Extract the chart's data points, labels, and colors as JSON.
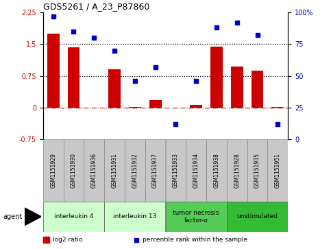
{
  "title": "GDS5261 / A_23_P87860",
  "samples": [
    "GSM1151929",
    "GSM1151930",
    "GSM1151936",
    "GSM1151931",
    "GSM1151932",
    "GSM1151937",
    "GSM1151933",
    "GSM1151934",
    "GSM1151938",
    "GSM1151928",
    "GSM1151935",
    "GSM1151951"
  ],
  "log2_ratio": [
    1.75,
    1.42,
    0.0,
    0.9,
    0.02,
    0.18,
    0.0,
    0.07,
    1.45,
    0.97,
    0.88,
    0.02
  ],
  "percentile": [
    97,
    85,
    80,
    70,
    46,
    57,
    12,
    46,
    88,
    92,
    82,
    12
  ],
  "bar_color": "#CC0000",
  "dot_color": "#0000CC",
  "ylim_left": [
    -0.75,
    2.25
  ],
  "ylim_right": [
    0,
    100
  ],
  "yticks_left": [
    -0.75,
    0,
    0.75,
    1.5,
    2.25
  ],
  "yticks_right": [
    0,
    25,
    50,
    75,
    100
  ],
  "hline1": 0.75,
  "hline2": 1.5,
  "hline0": 0,
  "groups": [
    {
      "label": "interleukin 4",
      "start": 0,
      "end": 3,
      "color": "#ccffcc"
    },
    {
      "label": "interleukin 13",
      "start": 3,
      "end": 6,
      "color": "#ccffcc"
    },
    {
      "label": "tumor necrosis\nfactor-α",
      "start": 6,
      "end": 9,
      "color": "#55cc55"
    },
    {
      "label": "unstimulated",
      "start": 9,
      "end": 12,
      "color": "#33bb33"
    }
  ],
  "legend_bar_label": "log2 ratio",
  "legend_dot_label": "percentile rank within the sample",
  "agent_label": "agent"
}
